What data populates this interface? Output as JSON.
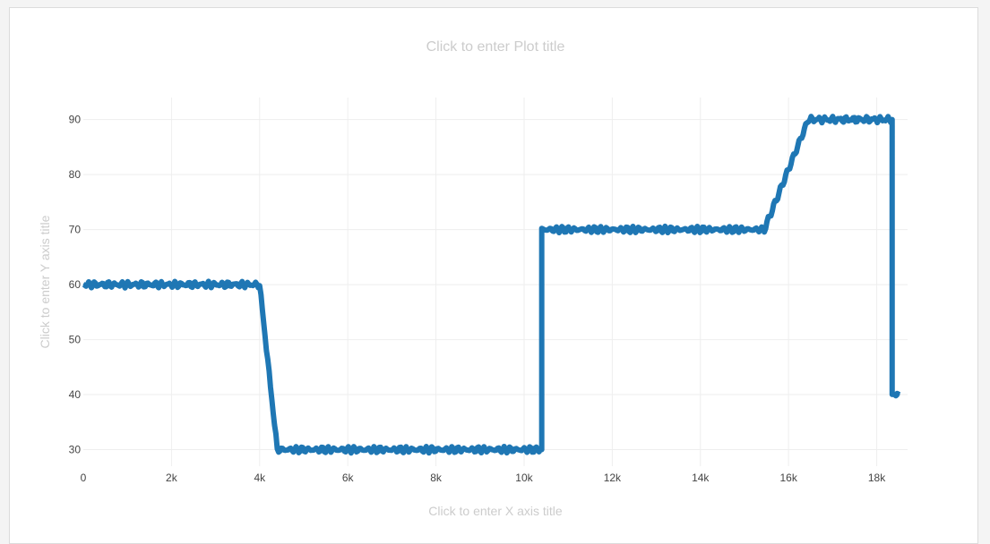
{
  "placeholders": {
    "plot_title": "Click to enter Plot title",
    "x_axis_title": "Click to enter X axis title",
    "y_axis_title": "Click to enter Y axis title"
  },
  "colors": {
    "line": "#1f77b4",
    "grid": "#eeeeee",
    "tick_text": "#444444",
    "placeholder_text": "#cccccc"
  },
  "chart_data": {
    "type": "line",
    "title": "",
    "xlabel": "",
    "ylabel": "",
    "xlim": [
      0,
      18700
    ],
    "ylim": [
      27,
      94
    ],
    "grid": true,
    "x_ticks": [
      0,
      2000,
      4000,
      6000,
      8000,
      10000,
      12000,
      14000,
      16000,
      18000
    ],
    "x_tick_labels": [
      "0",
      "2k",
      "4k",
      "6k",
      "8k",
      "10k",
      "12k",
      "14k",
      "16k",
      "18k"
    ],
    "y_ticks": [
      30,
      40,
      50,
      60,
      70,
      80,
      90
    ],
    "y_tick_labels": [
      "30",
      "40",
      "50",
      "60",
      "70",
      "80",
      "90"
    ],
    "series": [
      {
        "x": [
          0,
          4000,
          4400,
          10400,
          10400,
          15450,
          16450,
          18350,
          18350,
          18520
        ],
        "y": [
          60,
          60,
          30,
          30,
          70,
          70,
          90,
          90,
          40,
          40
        ]
      }
    ]
  }
}
